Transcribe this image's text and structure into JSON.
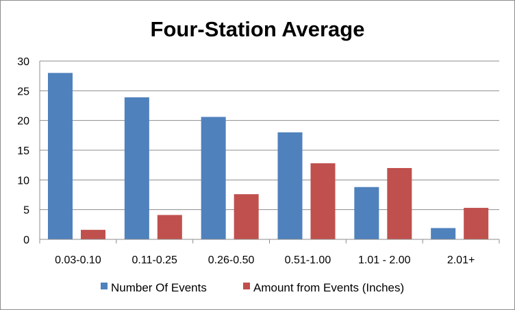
{
  "chart_data": {
    "type": "bar",
    "title": "Four-Station Average",
    "xlabel": "",
    "ylabel": "",
    "categories": [
      "0.03-0.10",
      "0.11-0.25",
      "0.26-0.50",
      "0.51-1.00",
      "1.01 - 2.00",
      "2.01+"
    ],
    "series": [
      {
        "name": "Number Of Events",
        "values": [
          28,
          23.9,
          20.6,
          18,
          8.8,
          1.9
        ],
        "color": "#4f81bd"
      },
      {
        "name": "Amount from Events (Inches)",
        "values": [
          1.6,
          4.1,
          7.6,
          12.8,
          12,
          5.3
        ],
        "color": "#c0504d"
      }
    ],
    "ylim": [
      0,
      30
    ],
    "yticks": [
      "0",
      "5",
      "10",
      "15",
      "20",
      "25",
      "30"
    ],
    "grid": true,
    "legend_position": "bottom"
  }
}
